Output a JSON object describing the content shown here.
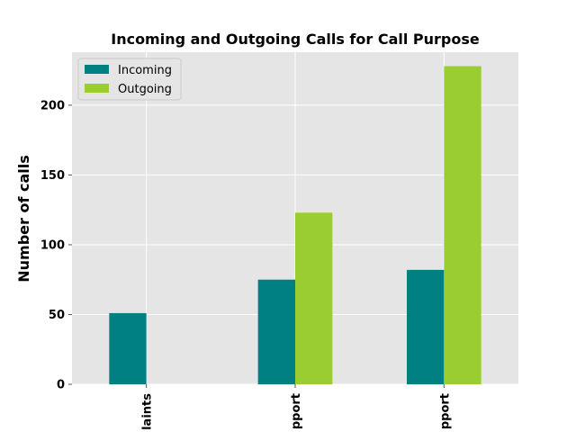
{
  "chart_data": {
    "type": "bar",
    "title": "Incoming and Outgoing Calls for Call Purpose",
    "xlabel": "",
    "ylabel": "Number of calls",
    "categories": [
      "laints",
      "pport",
      "pport"
    ],
    "series": [
      {
        "name": "Incoming",
        "values": [
          51,
          75,
          82
        ],
        "color": "#008080"
      },
      {
        "name": "Outgoing",
        "values": [
          0,
          123,
          228
        ],
        "color": "#9acd32"
      }
    ],
    "ylim": [
      0,
      238
    ],
    "yticks": [
      0,
      50,
      100,
      150,
      200
    ],
    "grid": true,
    "legend_position": "upper-left",
    "plot_background": "#e5e5e5",
    "grid_color": "#ffffff"
  }
}
